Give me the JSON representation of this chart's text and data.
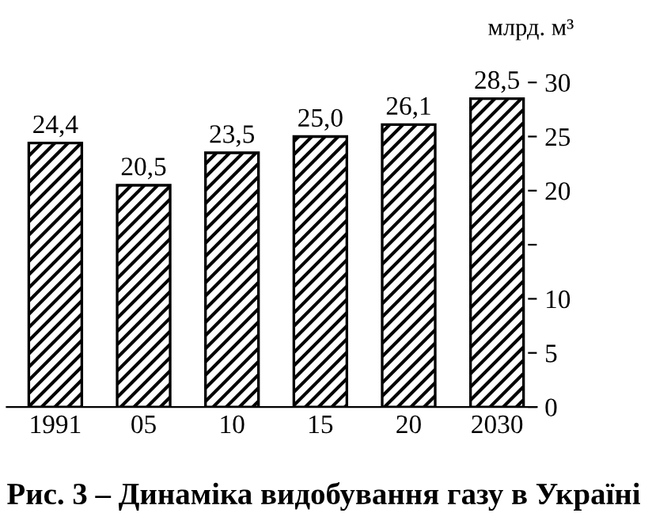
{
  "chart_data": {
    "type": "bar",
    "title": "Рис. 3 – Динаміка видобування газу в Україні",
    "ylabel": "млрд. м³",
    "categories": [
      "1991",
      "05",
      "10",
      "15",
      "20",
      "2030"
    ],
    "values": [
      24.4,
      20.5,
      23.5,
      25.0,
      26.1,
      28.5
    ],
    "value_labels": [
      "24,4",
      "20,5",
      "23,5",
      "25,0",
      "26,1",
      "28,5"
    ],
    "color": "#000000",
    "ylim": [
      0,
      30
    ],
    "yticks": [
      0,
      5,
      10,
      {
        "value": 15,
        "label": null
      },
      20,
      25,
      30
    ],
    "grid": false,
    "legend": false
  }
}
